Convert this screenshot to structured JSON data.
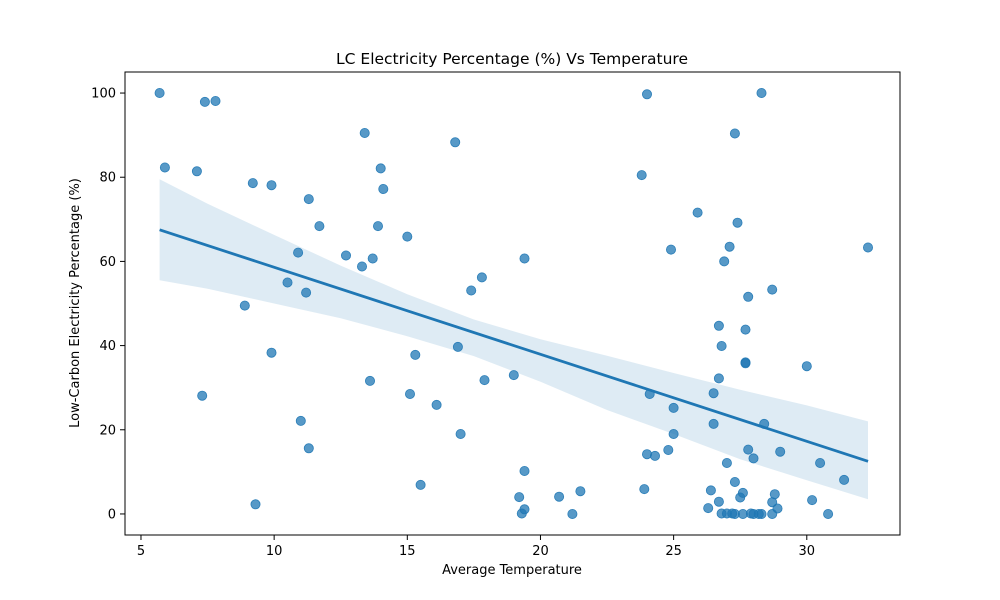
{
  "chart_data": {
    "type": "scatter",
    "title": "LC Electricity Percentage (%) Vs Temperature",
    "xlabel": "Average Temperature",
    "ylabel": "Low-Carbon Electricity Percentage (%)",
    "xlim": [
      4.4,
      33.5
    ],
    "ylim": [
      -5,
      105
    ],
    "xticks": [
      5,
      10,
      15,
      20,
      25,
      30
    ],
    "yticks": [
      0,
      20,
      40,
      60,
      80,
      100
    ],
    "grid": false,
    "colors": {
      "points": "#1f77b4",
      "line": "#1f77b4",
      "band": "#1f77b4"
    },
    "regression": {
      "x": [
        5.7,
        32.3
      ],
      "y": [
        67.5,
        12.5
      ],
      "ci_x": [
        5.7,
        7.5,
        10,
        12.5,
        15,
        17.5,
        20,
        22.5,
        25,
        27.5,
        30,
        32.3
      ],
      "ci_upper": [
        79.5,
        73.7,
        66.3,
        59.0,
        52.2,
        46.2,
        41.5,
        37.6,
        33.5,
        29.5,
        25.8,
        22.0
      ],
      "ci_lower": [
        55.5,
        53.5,
        50.0,
        46.5,
        42.2,
        37.5,
        31.4,
        24.7,
        19.0,
        13.0,
        8.0,
        3.5
      ]
    },
    "series": [
      {
        "points": [
          [
            5.7,
            100
          ],
          [
            5.9,
            82.3
          ],
          [
            7.1,
            81.4
          ],
          [
            7.4,
            97.9
          ],
          [
            7.8,
            98.1
          ],
          [
            7.3,
            28.1
          ],
          [
            8.9,
            49.5
          ],
          [
            9.2,
            78.6
          ],
          [
            9.3,
            2.3
          ],
          [
            9.9,
            78.1
          ],
          [
            9.9,
            38.3
          ],
          [
            10.5,
            55.0
          ],
          [
            10.9,
            62.1
          ],
          [
            11.0,
            22.1
          ],
          [
            11.2,
            52.6
          ],
          [
            11.3,
            15.6
          ],
          [
            11.3,
            74.8
          ],
          [
            11.7,
            68.4
          ],
          [
            12.7,
            61.4
          ],
          [
            13.3,
            58.8
          ],
          [
            13.4,
            90.5
          ],
          [
            13.6,
            31.6
          ],
          [
            13.7,
            60.7
          ],
          [
            13.9,
            68.4
          ],
          [
            14.0,
            82.1
          ],
          [
            14.1,
            77.2
          ],
          [
            15.0,
            65.9
          ],
          [
            15.1,
            28.5
          ],
          [
            15.3,
            37.8
          ],
          [
            15.5,
            6.9
          ],
          [
            16.1,
            25.9
          ],
          [
            16.8,
            88.3
          ],
          [
            16.9,
            39.7
          ],
          [
            17.0,
            19.0
          ],
          [
            17.4,
            53.1
          ],
          [
            17.8,
            56.2
          ],
          [
            17.9,
            31.8
          ],
          [
            19.0,
            33.0
          ],
          [
            19.2,
            4.0
          ],
          [
            19.3,
            0.1
          ],
          [
            19.4,
            60.7
          ],
          [
            19.4,
            10.2
          ],
          [
            19.4,
            1.1
          ],
          [
            20.7,
            4.1
          ],
          [
            21.2,
            0.0
          ],
          [
            21.5,
            5.4
          ],
          [
            23.8,
            80.5
          ],
          [
            23.9,
            5.9
          ],
          [
            24.0,
            14.2
          ],
          [
            24.0,
            99.7
          ],
          [
            24.1,
            28.5
          ],
          [
            24.3,
            13.8
          ],
          [
            24.8,
            15.2
          ],
          [
            24.9,
            62.8
          ],
          [
            25.0,
            19.0
          ],
          [
            25.0,
            25.2
          ],
          [
            25.9,
            71.6
          ],
          [
            26.3,
            1.4
          ],
          [
            26.4,
            5.6
          ],
          [
            26.5,
            21.4
          ],
          [
            26.5,
            28.7
          ],
          [
            26.7,
            2.9
          ],
          [
            26.7,
            32.2
          ],
          [
            26.7,
            44.7
          ],
          [
            26.8,
            0.1
          ],
          [
            26.8,
            39.9
          ],
          [
            26.9,
            60.0
          ],
          [
            27.0,
            12.1
          ],
          [
            27.0,
            0.1
          ],
          [
            27.1,
            63.5
          ],
          [
            27.2,
            0.1
          ],
          [
            27.3,
            0.0
          ],
          [
            27.3,
            7.6
          ],
          [
            27.3,
            90.4
          ],
          [
            27.4,
            69.2
          ],
          [
            27.5,
            3.9
          ],
          [
            27.6,
            0.0
          ],
          [
            27.6,
            5.0
          ],
          [
            27.7,
            43.8
          ],
          [
            27.7,
            35.8
          ],
          [
            27.7,
            36.0
          ],
          [
            27.8,
            51.6
          ],
          [
            27.8,
            15.3
          ],
          [
            27.9,
            0.1
          ],
          [
            28.0,
            13.2
          ],
          [
            28.0,
            0.0
          ],
          [
            28.2,
            0.0
          ],
          [
            28.3,
            100.0
          ],
          [
            28.3,
            0.0
          ],
          [
            28.4,
            21.4
          ],
          [
            28.7,
            2.8
          ],
          [
            28.7,
            53.3
          ],
          [
            28.7,
            0.0
          ],
          [
            28.8,
            4.7
          ],
          [
            28.9,
            1.3
          ],
          [
            29.0,
            14.8
          ],
          [
            30.0,
            35.1
          ],
          [
            30.2,
            3.3
          ],
          [
            30.5,
            12.1
          ],
          [
            30.8,
            0.0
          ],
          [
            31.4,
            8.1
          ],
          [
            32.3,
            63.3
          ]
        ]
      }
    ]
  }
}
